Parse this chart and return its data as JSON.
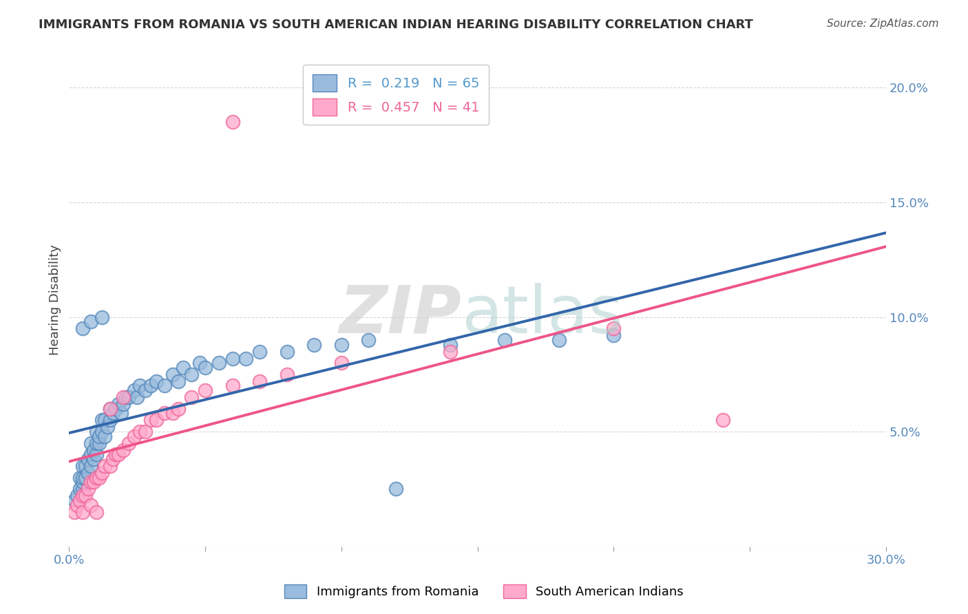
{
  "title": "IMMIGRANTS FROM ROMANIA VS SOUTH AMERICAN INDIAN HEARING DISABILITY CORRELATION CHART",
  "source": "Source: ZipAtlas.com",
  "ylabel": "Hearing Disability",
  "xmin": 0.0,
  "xmax": 0.3,
  "ymin": 0.0,
  "ymax": 0.215,
  "yticks": [
    0.0,
    0.05,
    0.1,
    0.15,
    0.2
  ],
  "xticks": [
    0.0,
    0.05,
    0.1,
    0.15,
    0.2,
    0.25,
    0.3
  ],
  "legend_entries": [
    {
      "label": "R =  0.219   N = 65",
      "color": "#5599CC"
    },
    {
      "label": "R =  0.457   N = 41",
      "color": "#EE6699"
    }
  ],
  "legend_labels_bottom": [
    "Immigrants from Romania",
    "South American Indians"
  ],
  "blue_color": "#99BBDD",
  "pink_color": "#FFAACC",
  "blue_edge_color": "#5588BB",
  "pink_edge_color": "#EE6699",
  "blue_line_color": "#3366AA",
  "pink_line_color": "#EE5588",
  "dashed_line_color": "#88BBCC",
  "background_color": "#FFFFFF",
  "grid_color": "#CCCCCC",
  "blue_scatter_x": [
    0.002,
    0.003,
    0.004,
    0.004,
    0.005,
    0.005,
    0.005,
    0.005,
    0.006,
    0.006,
    0.007,
    0.007,
    0.008,
    0.008,
    0.008,
    0.009,
    0.009,
    0.01,
    0.01,
    0.01,
    0.011,
    0.011,
    0.012,
    0.012,
    0.013,
    0.013,
    0.014,
    0.015,
    0.015,
    0.016,
    0.017,
    0.018,
    0.019,
    0.02,
    0.021,
    0.022,
    0.024,
    0.025,
    0.026,
    0.028,
    0.03,
    0.032,
    0.035,
    0.038,
    0.04,
    0.042,
    0.045,
    0.048,
    0.05,
    0.055,
    0.06,
    0.065,
    0.07,
    0.08,
    0.09,
    0.1,
    0.11,
    0.12,
    0.14,
    0.16,
    0.18,
    0.2,
    0.005,
    0.008,
    0.012
  ],
  "blue_scatter_y": [
    0.02,
    0.022,
    0.025,
    0.03,
    0.025,
    0.028,
    0.03,
    0.035,
    0.03,
    0.035,
    0.032,
    0.038,
    0.035,
    0.04,
    0.045,
    0.038,
    0.042,
    0.04,
    0.045,
    0.05,
    0.045,
    0.048,
    0.05,
    0.055,
    0.048,
    0.055,
    0.052,
    0.055,
    0.06,
    0.058,
    0.06,
    0.062,
    0.058,
    0.062,
    0.065,
    0.065,
    0.068,
    0.065,
    0.07,
    0.068,
    0.07,
    0.072,
    0.07,
    0.075,
    0.072,
    0.078,
    0.075,
    0.08,
    0.078,
    0.08,
    0.082,
    0.082,
    0.085,
    0.085,
    0.088,
    0.088,
    0.09,
    0.025,
    0.088,
    0.09,
    0.09,
    0.092,
    0.095,
    0.098,
    0.1
  ],
  "pink_scatter_x": [
    0.002,
    0.003,
    0.004,
    0.005,
    0.006,
    0.007,
    0.008,
    0.009,
    0.01,
    0.011,
    0.012,
    0.013,
    0.015,
    0.016,
    0.017,
    0.018,
    0.02,
    0.022,
    0.024,
    0.026,
    0.028,
    0.03,
    0.032,
    0.035,
    0.038,
    0.04,
    0.045,
    0.05,
    0.06,
    0.07,
    0.08,
    0.1,
    0.14,
    0.2,
    0.24,
    0.005,
    0.008,
    0.01,
    0.015,
    0.02,
    0.06
  ],
  "pink_scatter_y": [
    0.015,
    0.018,
    0.02,
    0.022,
    0.022,
    0.025,
    0.028,
    0.028,
    0.03,
    0.03,
    0.032,
    0.035,
    0.035,
    0.038,
    0.04,
    0.04,
    0.042,
    0.045,
    0.048,
    0.05,
    0.05,
    0.055,
    0.055,
    0.058,
    0.058,
    0.06,
    0.065,
    0.068,
    0.07,
    0.072,
    0.075,
    0.08,
    0.085,
    0.095,
    0.055,
    0.015,
    0.018,
    0.015,
    0.06,
    0.065,
    0.185
  ]
}
